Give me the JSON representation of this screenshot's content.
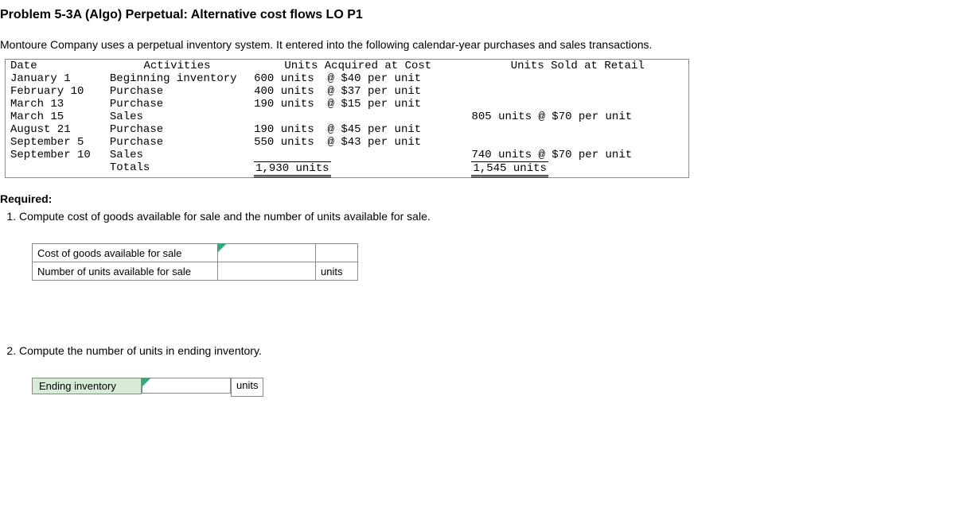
{
  "title": "Problem 5-3A (Algo) Perpetual: Alternative cost flows LO P1",
  "intro": "Montoure Company uses a perpetual inventory system. It entered into the following calendar-year purchases and sales transactions.",
  "table": {
    "headers": {
      "date": "Date",
      "activities": "Activities",
      "acquired": "Units Acquired at Cost",
      "sold": "Units Sold at Retail"
    },
    "rows": [
      {
        "date": "January 1",
        "activity": "Beginning inventory",
        "acq": "600 units  @ $40 per unit",
        "sold": ""
      },
      {
        "date": "February 10",
        "activity": "Purchase",
        "acq": "400 units  @ $37 per unit",
        "sold": ""
      },
      {
        "date": "March 13",
        "activity": "Purchase",
        "acq": "190 units  @ $15 per unit",
        "sold": ""
      },
      {
        "date": "March 15",
        "activity": "Sales",
        "acq": "",
        "sold": "805 units @ $70 per unit"
      },
      {
        "date": "August 21",
        "activity": "Purchase",
        "acq": "190 units  @ $45 per unit",
        "sold": ""
      },
      {
        "date": "September 5",
        "activity": "Purchase",
        "acq": "550 units  @ $43 per unit",
        "sold": ""
      },
      {
        "date": "September 10",
        "activity": "Sales",
        "acq": "",
        "sold": "740 units @ $70 per unit"
      }
    ],
    "totals": {
      "label": "Totals",
      "acq": "1,930 units",
      "sold": "1,545 units"
    }
  },
  "required": {
    "heading": "Required:",
    "q1": "Compute cost of goods available for sale and the number of units available for sale.",
    "q2": "Compute the number of units in ending inventory."
  },
  "answers1": {
    "row1_label": "Cost of goods available for sale",
    "row2_label": "Number of units available for sale",
    "units_suffix": "units"
  },
  "answers2": {
    "label": "Ending inventory",
    "units_suffix": "units"
  }
}
